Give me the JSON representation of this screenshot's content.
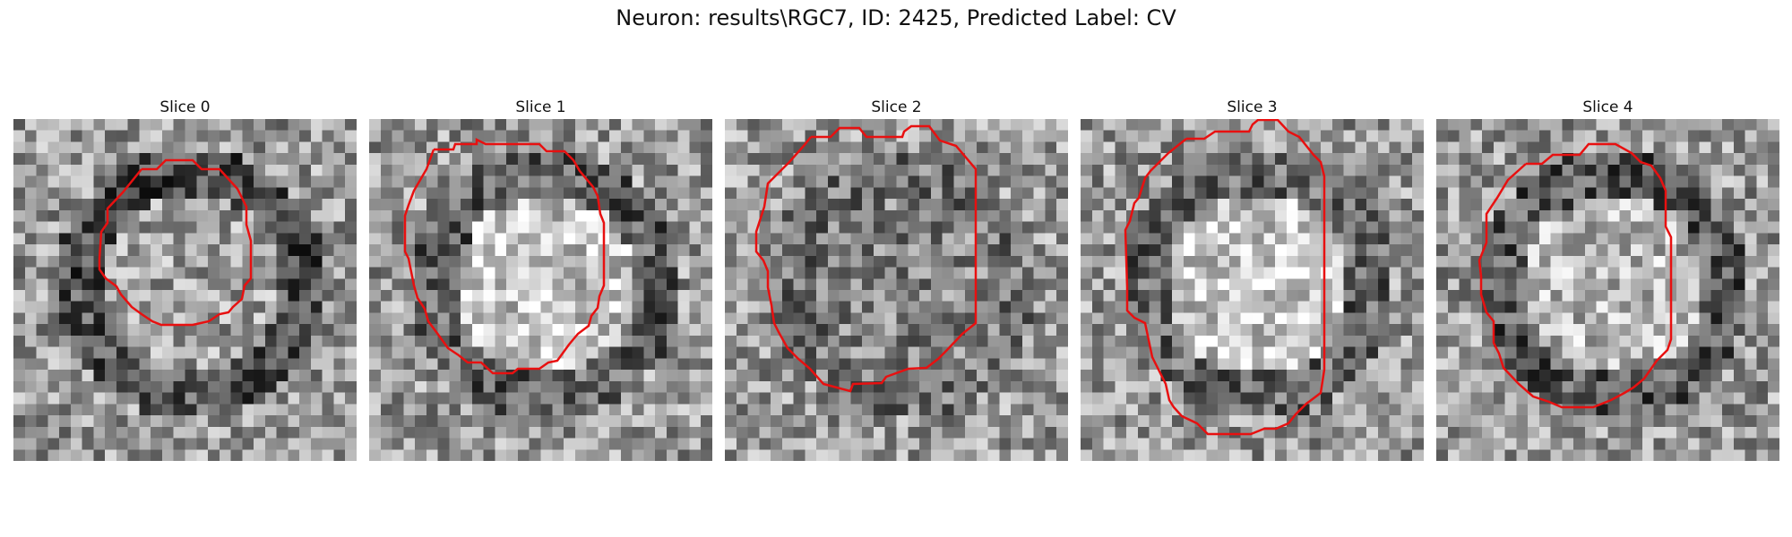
{
  "figure": {
    "title": "Neuron: results\\RGC7, ID: 2425, Predicted Label: CV"
  },
  "colors": {
    "outline": "#e81010"
  },
  "slices": [
    {
      "title": "Slice 0",
      "seed": 11,
      "center_brightness": 0.62,
      "ring_darkness": 0.55
    },
    {
      "title": "Slice 1",
      "seed": 23,
      "center_brightness": 0.78,
      "ring_darkness": 0.45
    },
    {
      "title": "Slice 2",
      "seed": 37,
      "center_brightness": 0.52,
      "ring_darkness": 0.3
    },
    {
      "title": "Slice 3",
      "seed": 41,
      "center_brightness": 0.8,
      "ring_darkness": 0.4
    },
    {
      "title": "Slice 4",
      "seed": 59,
      "center_brightness": 0.72,
      "ring_darkness": 0.5
    }
  ]
}
